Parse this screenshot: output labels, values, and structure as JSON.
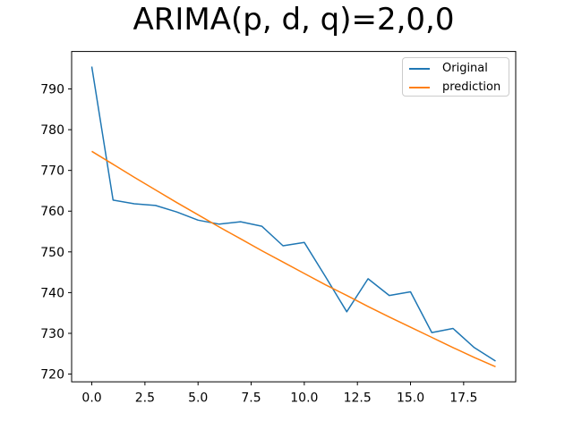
{
  "title": "ARIMA(p, d, q)=2,0,0",
  "background_color": "#ffffff",
  "axes": {
    "spine_color": "#000000",
    "tick_color": "#000000",
    "label_color": "#000000"
  },
  "legend": {
    "position": "upper right",
    "border_color": "#cccccc",
    "entries": [
      {
        "label": "Original",
        "color": "#1f77b4"
      },
      {
        "label": "prediction",
        "color": "#ff7f0e"
      }
    ]
  },
  "chart_data": {
    "type": "line",
    "title": "ARIMA(p, d, q)=2,0,0",
    "xlabel": "",
    "ylabel": "",
    "grid": false,
    "legend_position": "upper right",
    "xlim": [
      -0.95,
      19.95
    ],
    "ylim": [
      718.1,
      799.2
    ],
    "x": [
      0,
      1,
      2,
      3,
      4,
      5,
      6,
      7,
      8,
      9,
      10,
      11,
      12,
      13,
      14,
      15,
      16,
      17,
      18,
      19
    ],
    "series": [
      {
        "name": "Original",
        "color": "#1f77b4",
        "values": [
          795.5,
          762.7,
          761.8,
          761.4,
          759.8,
          757.8,
          756.8,
          757.4,
          756.3,
          751.5,
          752.3,
          743.9,
          735.3,
          743.4,
          739.3,
          740.2,
          730.2,
          731.2,
          726.5,
          723.2
        ]
      },
      {
        "name": "prediction",
        "color": "#ff7f0e",
        "values": [
          774.7,
          771.5,
          768.3,
          765.2,
          762.1,
          759.1,
          756.1,
          753.2,
          750.3,
          747.5,
          744.7,
          741.9,
          739.3,
          736.6,
          734.0,
          731.5,
          729.0,
          726.5,
          724.1,
          721.8
        ]
      }
    ],
    "xticks": {
      "values": [
        0,
        2.5,
        5,
        7.5,
        10,
        12.5,
        15,
        17.5
      ],
      "labels": [
        "0.0",
        "2.5",
        "5.0",
        "7.5",
        "10.0",
        "12.5",
        "15.0",
        "17.5"
      ]
    },
    "yticks": {
      "values": [
        720,
        730,
        740,
        750,
        760,
        770,
        780,
        790
      ],
      "labels": [
        "720",
        "730",
        "740",
        "750",
        "760",
        "770",
        "780",
        "790"
      ]
    }
  }
}
